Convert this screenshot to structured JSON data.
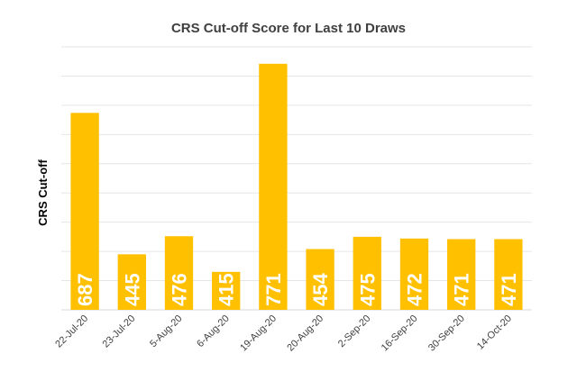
{
  "chart_data": {
    "type": "bar",
    "title": "CRS Cut-off Score for Last 10 Draws",
    "xlabel": "",
    "ylabel": "CRS Cut-off",
    "categories": [
      "22-Jul-20",
      "23-Jul-20",
      "5-Aug-20",
      "6-Aug-20",
      "19-Aug-20",
      "20-Aug-20",
      "2-Sep-20",
      "16-Sep-20",
      "30-Sep-20",
      "14-Oct-20"
    ],
    "values": [
      687,
      445,
      476,
      415,
      771,
      454,
      475,
      472,
      471,
      471
    ],
    "data_labels": [
      "687",
      "445",
      "476",
      "415",
      "771",
      "454",
      "475",
      "472",
      "471",
      "471"
    ],
    "ylim": [
      350,
      800
    ],
    "gridlines": [
      400,
      450,
      500,
      550,
      600,
      650,
      700,
      750,
      800
    ],
    "grid": true,
    "legend": "none",
    "colors": {
      "bar": "#FFC000",
      "grid": "#E6E6E6",
      "label": "#FFFFFF",
      "text": "#404040"
    }
  }
}
